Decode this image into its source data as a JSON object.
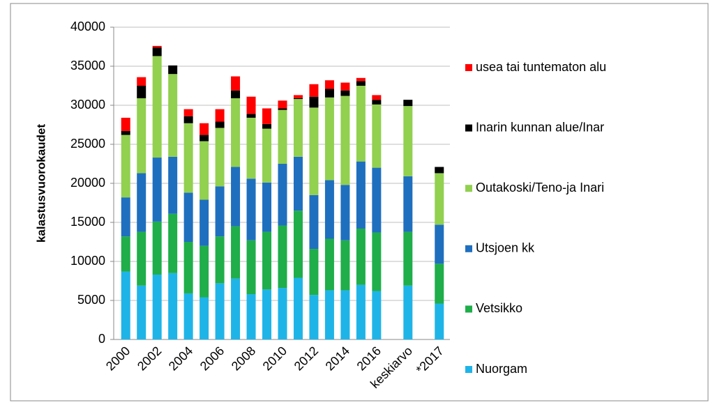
{
  "chart_data": {
    "type": "stacked-bar",
    "y_label": "kalastusvuorokaudet",
    "categories": [
      "2000",
      null,
      "2002",
      null,
      "2004",
      null,
      "2006",
      null,
      "2008",
      null,
      "2010",
      null,
      "2012",
      null,
      "2014",
      null,
      "2016",
      null,
      "keskiarvo",
      null,
      "*2017"
    ],
    "series": [
      {
        "name": "Nuorgam",
        "color": "#1fb4e8",
        "values": [
          8700,
          6900,
          8300,
          8500,
          5900,
          5400,
          7200,
          7800,
          5800,
          6400,
          6600,
          7900,
          5700,
          6300,
          6300,
          7000,
          6200,
          null,
          6900,
          null,
          4600
        ]
      },
      {
        "name": "Vetsikko",
        "color": "#1fae4a",
        "values": [
          4500,
          6900,
          6800,
          7600,
          6600,
          6600,
          6000,
          6700,
          6900,
          7400,
          8000,
          8600,
          5900,
          6600,
          6400,
          7200,
          7500,
          null,
          6900,
          null,
          5100
        ]
      },
      {
        "name": "Utsjoen kk",
        "color": "#1f6fbf",
        "values": [
          5000,
          7500,
          8200,
          7300,
          6300,
          5900,
          6400,
          7600,
          7900,
          6300,
          7900,
          6900,
          6900,
          7500,
          7100,
          8600,
          8300,
          null,
          7100,
          null,
          5000
        ]
      },
      {
        "name": "Outakoski/Teno-ja Inari",
        "color": "#92d050",
        "values": [
          8000,
          9600,
          13000,
          10600,
          8900,
          7500,
          7500,
          8800,
          7800,
          6900,
          6900,
          7400,
          11200,
          10600,
          11400,
          9700,
          8100,
          null,
          9000,
          null,
          6600
        ]
      },
      {
        "name": "Inarin kunnan alue/Inar",
        "color": "#000000",
        "values": [
          500,
          1600,
          1100,
          1100,
          900,
          800,
          800,
          1000,
          500,
          600,
          200,
          100,
          1400,
          1100,
          700,
          600,
          600,
          null,
          800,
          null,
          800
        ]
      },
      {
        "name": "usea tai tuntematon alu",
        "color": "#ff0000",
        "values": [
          1700,
          1100,
          200,
          0,
          900,
          1500,
          1600,
          1800,
          2200,
          2000,
          1000,
          400,
          1600,
          1100,
          1000,
          400,
          600,
          null,
          0,
          null,
          0
        ]
      }
    ],
    "ylim": [
      0,
      40000
    ],
    "yticks": [
      0,
      5000,
      10000,
      15000,
      20000,
      25000,
      30000,
      35000,
      40000
    ],
    "grid": true,
    "legend": "right"
  }
}
